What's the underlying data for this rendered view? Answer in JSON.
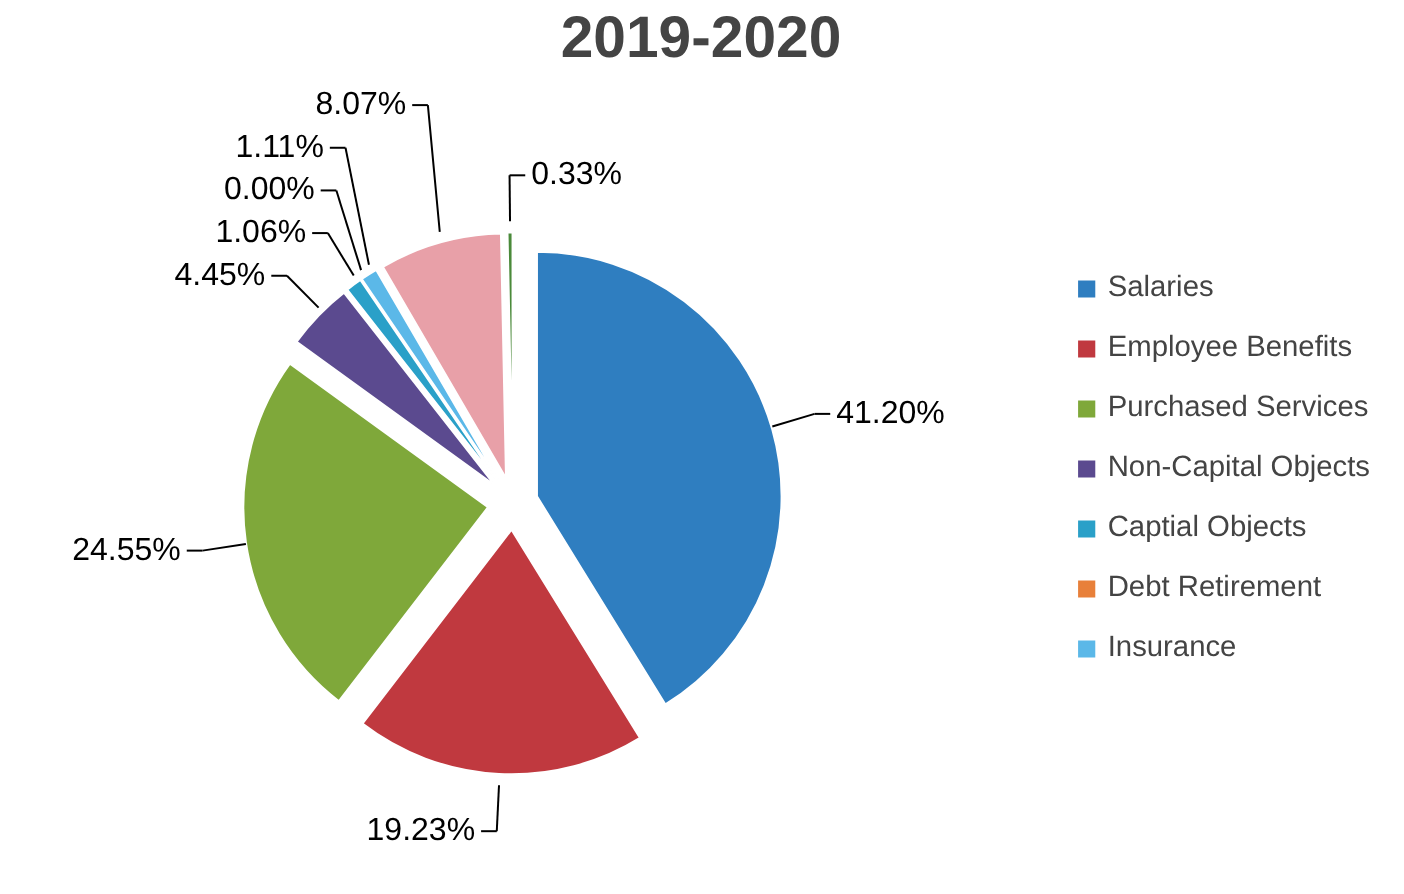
{
  "chart_data": {
    "type": "pie",
    "title": "2019-2020",
    "categories": [
      "Salaries",
      "Employee Benefits",
      "Purchased Services",
      "Non-Capital Objects",
      "Captial Objects",
      "Debt Retirement",
      "Insurance",
      null,
      null
    ],
    "values": [
      41.2,
      19.23,
      24.55,
      4.45,
      1.06,
      0.0,
      1.11,
      8.07,
      0.33
    ],
    "value_labels": [
      "41.20%",
      "19.23%",
      "24.55%",
      "4.45%",
      "1.06%",
      "0.00%",
      "1.11%",
      "8.07%",
      "0.33%"
    ],
    "colors": [
      "#2f7ec0",
      "#c0393f",
      "#7fa83a",
      "#5b4a8f",
      "#2aa0c8",
      "#e8803a",
      "#5bb8e8",
      "#e8a0a8",
      "#4a8a3a"
    ],
    "legend": "right"
  }
}
